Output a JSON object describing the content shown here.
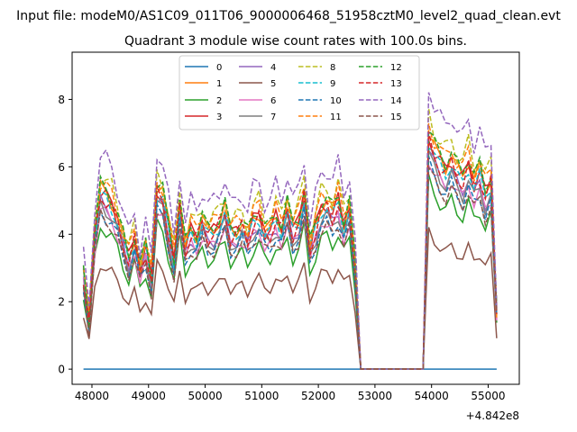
{
  "suptitle": "Input file: modeM0/AS1C09_011T06_9000006468_51958cztM0_level2_quad_clean.evt",
  "chart_data": {
    "type": "line",
    "title": "Quadrant 3 module wise count rates with 100.0s bins.",
    "xlabel": "",
    "ylabel": "",
    "x_offset_label": "+4.842e8",
    "xlim": [
      47650,
      55550
    ],
    "ylim": [
      -0.45,
      9.4
    ],
    "xticks": [
      48000,
      49000,
      50000,
      51000,
      52000,
      53000,
      54000,
      55000
    ],
    "xtick_labels": [
      "48000",
      "49000",
      "50000",
      "51000",
      "52000",
      "53000",
      "54000",
      "55000"
    ],
    "yticks": [
      0,
      2,
      4,
      6,
      8
    ],
    "ytick_labels": [
      "0",
      "2",
      "4",
      "6",
      "8"
    ],
    "grid": false,
    "legend_position": "top-center",
    "series": [
      {
        "name": "0",
        "color": "#1f77b4",
        "dash": "solid",
        "base": 0
      },
      {
        "name": "1",
        "color": "#ff7f0e",
        "dash": "solid",
        "base": 5.2
      },
      {
        "name": "2",
        "color": "#2ca02c",
        "dash": "solid",
        "base": 4.1
      },
      {
        "name": "3",
        "color": "#d62728",
        "dash": "solid",
        "base": 5.1
      },
      {
        "name": "4",
        "color": "#9467bd",
        "dash": "solid",
        "base": 4.8
      },
      {
        "name": "5",
        "color": "#8c564b",
        "dash": "solid",
        "base": 3.0
      },
      {
        "name": "6",
        "color": "#e377c2",
        "dash": "solid",
        "base": 4.6
      },
      {
        "name": "7",
        "color": "#7f7f7f",
        "dash": "solid",
        "base": 4.7
      },
      {
        "name": "8",
        "color": "#bcbd22",
        "dash": "dashed",
        "base": 5.6
      },
      {
        "name": "9",
        "color": "#17becf",
        "dash": "dashed",
        "base": 5.0
      },
      {
        "name": "10",
        "color": "#1f77b4",
        "dash": "dashed",
        "base": 4.5
      },
      {
        "name": "11",
        "color": "#ff7f0e",
        "dash": "dashed",
        "base": 5.4
      },
      {
        "name": "12",
        "color": "#2ca02c",
        "dash": "dashed",
        "base": 5.3
      },
      {
        "name": "13",
        "color": "#d62728",
        "dash": "dashed",
        "base": 5.0
      },
      {
        "name": "14",
        "color": "#9467bd",
        "dash": "dashed",
        "base": 6.2
      },
      {
        "name": "15",
        "color": "#8c564b",
        "dash": "dashed",
        "base": 4.4
      }
    ],
    "x": [
      47850,
      47950,
      48050,
      48150,
      48250,
      48350,
      48450,
      48550,
      48650,
      48750,
      48850,
      48950,
      49050,
      49150,
      49250,
      49350,
      49450,
      49550,
      49650,
      49750,
      49850,
      49950,
      50050,
      50150,
      50250,
      50350,
      50450,
      50550,
      50650,
      50750,
      50850,
      50950,
      51050,
      51150,
      51250,
      51350,
      51450,
      51550,
      51650,
      51750,
      51850,
      51950,
      52050,
      52150,
      52250,
      52350,
      52450,
      52550,
      52650,
      52750,
      52850,
      52950,
      53050,
      53150,
      53250,
      53350,
      53450,
      53550,
      53650,
      53750,
      53850,
      53950,
      54050,
      54150,
      54250,
      54350,
      54450,
      54550,
      54650,
      54750,
      54850,
      54950,
      55050,
      55150
    ],
    "profile": [
      0.55,
      0.27,
      0.78,
      1.03,
      1.0,
      0.96,
      0.87,
      0.75,
      0.64,
      0.76,
      0.58,
      0.7,
      0.52,
      1.04,
      1.0,
      0.82,
      0.63,
      0.95,
      0.7,
      0.8,
      0.77,
      0.86,
      0.78,
      0.8,
      0.85,
      0.92,
      0.78,
      0.8,
      0.84,
      0.76,
      0.86,
      0.9,
      0.8,
      0.8,
      0.88,
      0.82,
      0.94,
      0.8,
      0.86,
      1.02,
      0.7,
      0.82,
      0.94,
      0.96,
      0.9,
      0.98,
      0.84,
      0.94,
      0.6,
      0.0,
      0.0,
      0.0,
      0.0,
      0.0,
      0.0,
      0.0,
      0.0,
      0.0,
      0.0,
      0.0,
      0.0,
      1.36,
      1.26,
      1.2,
      1.16,
      1.22,
      1.14,
      1.1,
      1.2,
      1.08,
      1.14,
      1.02,
      1.1,
      0.33
    ]
  }
}
